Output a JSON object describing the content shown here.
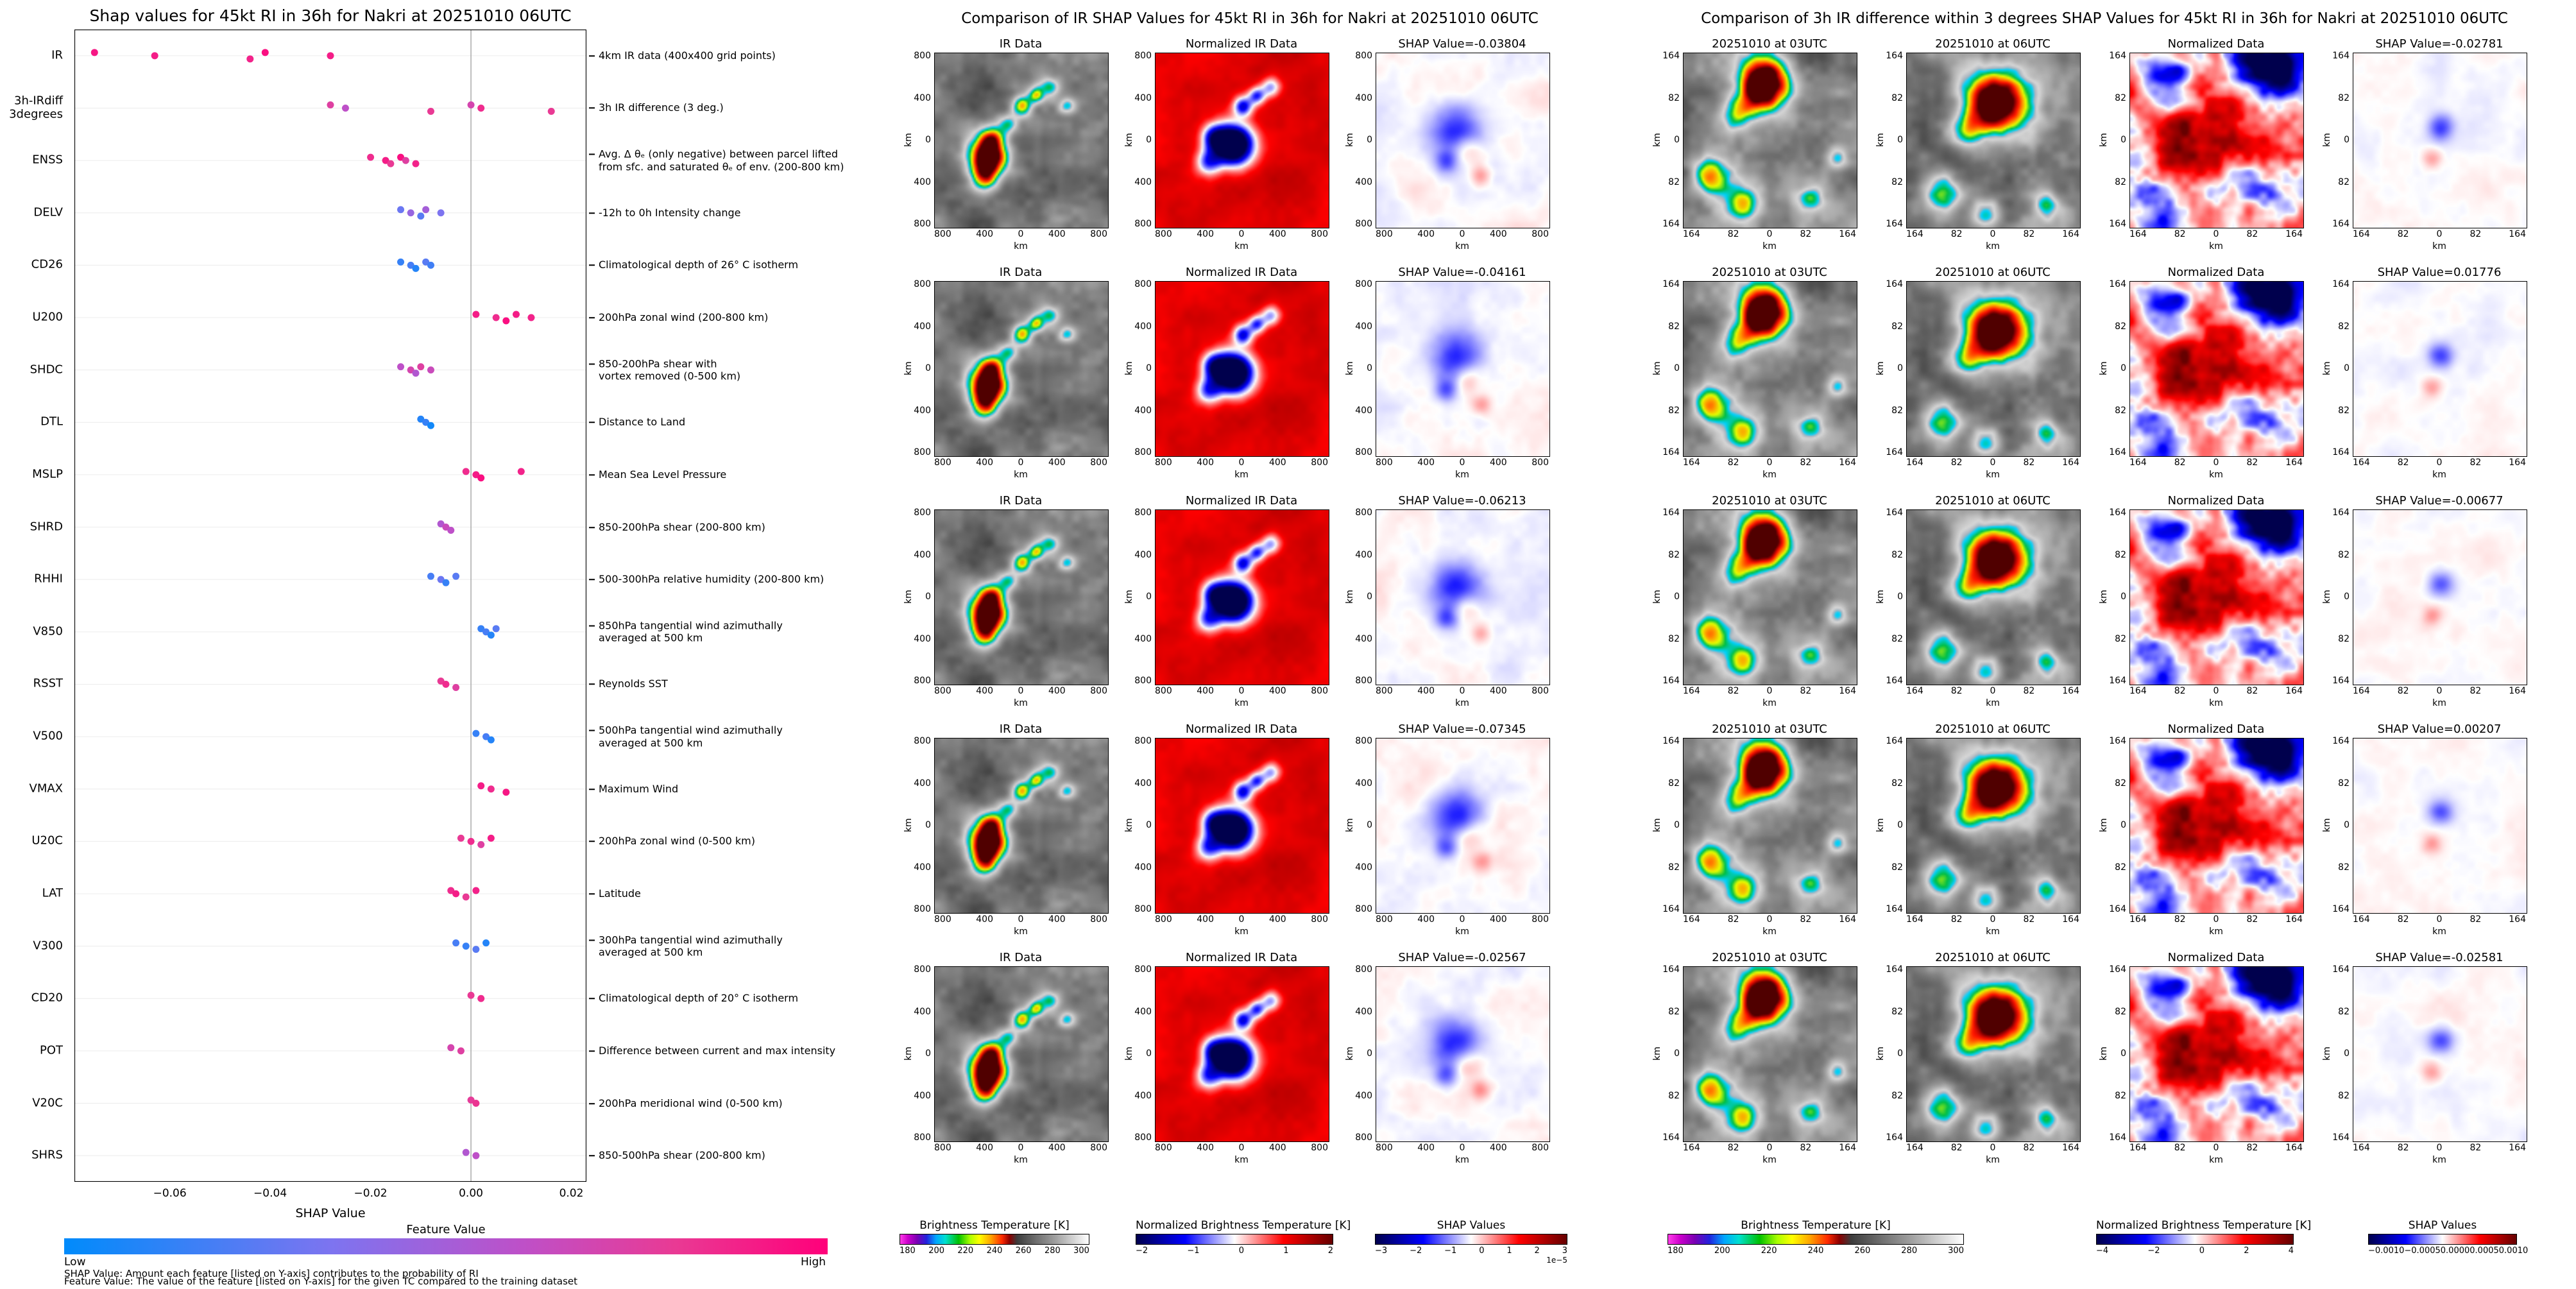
{
  "colors": {
    "feature_value_low": "#008bfb",
    "feature_value_high": "#ff007a",
    "seismic_neg": "#00004d",
    "seismic_pos": "#660000",
    "background": "#ffffff"
  },
  "left_panel": {
    "title": "Shap values for 45kt RI in 36h for Nakri at 20251010 06UTC",
    "xlabel": "SHAP Value",
    "x_ticks": [
      "−0.06",
      "−0.04",
      "−0.02",
      "0.00",
      "0.02"
    ],
    "x_tick_vals": [
      -0.06,
      -0.04,
      -0.02,
      0.0,
      0.02
    ],
    "colorbar": {
      "title": "Feature Value",
      "low": "Low",
      "high": "High"
    },
    "footnote1": "SHAP Value: Amount each feature [listed on Y-axis] contributes to the probability of RI",
    "footnote2": "Feature Value: The value of the feature [listed on Y-axis] for the given TC compared to the training dataset"
  },
  "middle_panel": {
    "title": "Comparison of IR SHAP Values for 45kt RI in 36h for Nakri at 20251010 06UTC",
    "axis_label": "km",
    "y_ticks": [
      "800",
      "400",
      "0",
      "400",
      "800"
    ],
    "x_ticks": [
      "800",
      "400",
      "0",
      "400",
      "800"
    ],
    "rows": [
      {
        "titles": [
          "IR Data",
          "Normalized IR Data",
          "SHAP Value=-0.03804"
        ]
      },
      {
        "titles": [
          "IR Data",
          "Normalized IR Data",
          "SHAP Value=-0.04161"
        ]
      },
      {
        "titles": [
          "IR Data",
          "Normalized IR Data",
          "SHAP Value=-0.06213"
        ]
      },
      {
        "titles": [
          "IR Data",
          "Normalized IR Data",
          "SHAP Value=-0.07345"
        ]
      },
      {
        "titles": [
          "IR Data",
          "Normalized IR Data",
          "SHAP Value=-0.02567"
        ]
      }
    ],
    "colorbars": [
      {
        "label": "Brightness Temperature [K]",
        "type": "ir",
        "ticks": [
          "180",
          "200",
          "220",
          "240",
          "260",
          "280",
          "300"
        ]
      },
      {
        "label": "Normalized Brightness Temperature [K]",
        "type": "seismic",
        "ticks": [
          "−2",
          "−1",
          "0",
          "1",
          "2"
        ]
      },
      {
        "label": "SHAP Values",
        "type": "seismic",
        "ticks": [
          "−3",
          "−2",
          "−1",
          "0",
          "1",
          "2",
          "3"
        ],
        "exp": "1e−5"
      }
    ]
  },
  "right_panel": {
    "title": "Comparison of 3h IR difference within 3 degrees SHAP Values for 45kt RI in 36h for Nakri at 20251010 06UTC",
    "axis_label": "km",
    "y_ticks": [
      "164",
      "82",
      "0",
      "82",
      "164"
    ],
    "x_ticks": [
      "164",
      "82",
      "0",
      "82",
      "164"
    ],
    "rows": [
      {
        "titles": [
          "20251010 at 03UTC",
          "20251010 at 06UTC",
          "Normalized Data",
          "SHAP Value=-0.02781"
        ]
      },
      {
        "titles": [
          "20251010 at 03UTC",
          "20251010 at 06UTC",
          "Normalized Data",
          "SHAP Value=0.01776"
        ]
      },
      {
        "titles": [
          "20251010 at 03UTC",
          "20251010 at 06UTC",
          "Normalized Data",
          "SHAP Value=-0.00677"
        ]
      },
      {
        "titles": [
          "20251010 at 03UTC",
          "20251010 at 06UTC",
          "Normalized Data",
          "SHAP Value=0.00207"
        ]
      },
      {
        "titles": [
          "20251010 at 03UTC",
          "20251010 at 06UTC",
          "Normalized Data",
          "SHAP Value=-0.02581"
        ]
      }
    ],
    "colorbars": [
      {
        "label": "Brightness Temperature [K]",
        "type": "ir",
        "ticks": [
          "180",
          "200",
          "220",
          "240",
          "260",
          "280",
          "300"
        ]
      },
      {
        "label": "Normalized Brightness Temperature [K]",
        "type": "seismic",
        "ticks": [
          "−4",
          "−2",
          "0",
          "2",
          "4"
        ]
      },
      {
        "label": "SHAP Values",
        "type": "seismic",
        "ticks": [
          "−0.0010",
          "−0.0005",
          "0.0000",
          "0.0005",
          "0.0010"
        ]
      }
    ]
  },
  "chart_data": [
    {
      "type": "scatter",
      "subtype": "shap-beeswarm",
      "title": "Shap values for 45kt RI in 36h for Nakri at 20251010 06UTC",
      "xlabel": "SHAP Value",
      "xlim": [
        -0.079,
        0.023
      ],
      "grid": "zero-line",
      "legend_position": "bottom-colorbar",
      "color_scale": {
        "low": "Low",
        "high": "High",
        "low_hex": "#008bfb",
        "high_hex": "#ff007a"
      },
      "features": [
        {
          "name": "IR",
          "desc": "4km IR data (400x400 grid points)",
          "points": [
            [
              -0.075,
              0.92
            ],
            [
              -0.063,
              0.9
            ],
            [
              -0.044,
              0.88
            ],
            [
              -0.041,
              0.95
            ],
            [
              -0.028,
              0.9
            ]
          ]
        },
        {
          "name": "3h-IRdiff\n3degrees",
          "desc": "3h IR difference (3 deg.)",
          "points": [
            [
              -0.028,
              0.75
            ],
            [
              -0.025,
              0.6
            ],
            [
              -0.008,
              0.8
            ],
            [
              0.0,
              0.7
            ],
            [
              0.002,
              0.85
            ],
            [
              0.016,
              0.8
            ]
          ]
        },
        {
          "name": "ENSS",
          "desc": "Avg. Δ θₑ (only negative) between parcel lifted\nfrom sfc. and saturated θₑ of env. (200-800 km)",
          "points": [
            [
              -0.02,
              0.85
            ],
            [
              -0.017,
              0.9
            ],
            [
              -0.016,
              0.8
            ],
            [
              -0.014,
              0.95
            ],
            [
              -0.013,
              0.75
            ],
            [
              -0.011,
              0.88
            ]
          ]
        },
        {
          "name": "DELV",
          "desc": "-12h to 0h Intensity change",
          "points": [
            [
              -0.014,
              0.3
            ],
            [
              -0.012,
              0.45
            ],
            [
              -0.01,
              0.25
            ],
            [
              -0.009,
              0.5
            ],
            [
              -0.006,
              0.35
            ]
          ]
        },
        {
          "name": "CD26",
          "desc": "Climatological depth of 26° C isotherm",
          "points": [
            [
              -0.014,
              0.15
            ],
            [
              -0.012,
              0.2
            ],
            [
              -0.011,
              0.1
            ],
            [
              -0.009,
              0.25
            ],
            [
              -0.008,
              0.18
            ]
          ]
        },
        {
          "name": "U200",
          "desc": "200hPa zonal wind (200-800 km)",
          "points": [
            [
              0.001,
              0.9
            ],
            [
              0.005,
              0.85
            ],
            [
              0.007,
              0.95
            ],
            [
              0.009,
              0.9
            ],
            [
              0.012,
              0.88
            ]
          ]
        },
        {
          "name": "SHDC",
          "desc": "850-200hPa shear with\nvortex removed (0-500 km)",
          "points": [
            [
              -0.014,
              0.6
            ],
            [
              -0.012,
              0.7
            ],
            [
              -0.011,
              0.55
            ],
            [
              -0.01,
              0.75
            ],
            [
              -0.008,
              0.65
            ]
          ]
        },
        {
          "name": "DTL",
          "desc": "Distance to Land",
          "points": [
            [
              -0.01,
              0.1
            ],
            [
              -0.009,
              0.15
            ],
            [
              -0.008,
              0.05
            ]
          ]
        },
        {
          "name": "MSLP",
          "desc": "Mean Sea Level Pressure",
          "points": [
            [
              -0.001,
              0.85
            ],
            [
              0.001,
              0.9
            ],
            [
              0.002,
              0.95
            ],
            [
              0.01,
              0.88
            ]
          ]
        },
        {
          "name": "SHRD",
          "desc": "850-200hPa shear (200-800 km)",
          "points": [
            [
              -0.006,
              0.55
            ],
            [
              -0.005,
              0.65
            ],
            [
              -0.004,
              0.6
            ]
          ]
        },
        {
          "name": "RHHI",
          "desc": "500-300hPa relative humidity (200-800 km)",
          "points": [
            [
              -0.008,
              0.2
            ],
            [
              -0.006,
              0.3
            ],
            [
              -0.005,
              0.15
            ],
            [
              -0.003,
              0.25
            ]
          ]
        },
        {
          "name": "V850",
          "desc": "850hPa tangential wind azimuthally\naveraged at 500 km",
          "points": [
            [
              0.002,
              0.15
            ],
            [
              0.003,
              0.2
            ],
            [
              0.004,
              0.1
            ],
            [
              0.005,
              0.25
            ]
          ]
        },
        {
          "name": "RSST",
          "desc": "Reynolds SST",
          "points": [
            [
              -0.006,
              0.8
            ],
            [
              -0.005,
              0.85
            ],
            [
              -0.003,
              0.75
            ]
          ]
        },
        {
          "name": "V500",
          "desc": "500hPa tangential wind azimuthally\naveraged at 500 km",
          "points": [
            [
              0.001,
              0.15
            ],
            [
              0.003,
              0.2
            ],
            [
              0.004,
              0.1
            ]
          ]
        },
        {
          "name": "VMAX",
          "desc": "Maximum Wind",
          "points": [
            [
              0.002,
              0.9
            ],
            [
              0.004,
              0.85
            ],
            [
              0.007,
              0.92
            ]
          ]
        },
        {
          "name": "U20C",
          "desc": "200hPa zonal wind (0-500 km)",
          "points": [
            [
              -0.002,
              0.8
            ],
            [
              0.0,
              0.85
            ],
            [
              0.002,
              0.75
            ],
            [
              0.004,
              0.9
            ]
          ]
        },
        {
          "name": "LAT",
          "desc": "Latitude",
          "points": [
            [
              -0.004,
              0.85
            ],
            [
              -0.003,
              0.9
            ],
            [
              -0.001,
              0.8
            ],
            [
              0.001,
              0.88
            ]
          ]
        },
        {
          "name": "V300",
          "desc": "300hPa tangential wind azimuthally\naveraged at 500 km",
          "points": [
            [
              -0.003,
              0.2
            ],
            [
              -0.001,
              0.15
            ],
            [
              0.001,
              0.25
            ],
            [
              0.003,
              0.1
            ]
          ]
        },
        {
          "name": "CD20",
          "desc": "Climatological depth of 20° C isotherm",
          "points": [
            [
              0.0,
              0.8
            ],
            [
              0.002,
              0.85
            ]
          ]
        },
        {
          "name": "POT",
          "desc": "Difference between current and max intensity",
          "points": [
            [
              -0.004,
              0.7
            ],
            [
              -0.002,
              0.75
            ]
          ]
        },
        {
          "name": "V20C",
          "desc": "200hPa meridional wind (0-500 km)",
          "points": [
            [
              0.0,
              0.78
            ],
            [
              0.001,
              0.82
            ]
          ]
        },
        {
          "name": "SHRS",
          "desc": "850-500hPa shear (200-800 km)",
          "points": [
            [
              -0.001,
              0.55
            ],
            [
              0.001,
              0.6
            ]
          ]
        }
      ]
    },
    {
      "type": "heatmap",
      "subtype": "image-grid",
      "title": "Comparison of IR SHAP Values for 45kt RI in 36h for Nakri at 20251010 06UTC",
      "columns": [
        "IR Data",
        "Normalized IR Data",
        "SHAP Value"
      ],
      "n_rows": 5,
      "shap_values": [
        -0.03804,
        -0.04161,
        -0.06213,
        -0.07345,
        -0.02567
      ],
      "axis_range_km": [
        -800,
        800
      ],
      "colorbar_ranges": {
        "brightness_temperature_K": [
          180,
          300
        ],
        "normalized_brightness_temperature_K": [
          -2,
          2
        ],
        "shap_values": [
          -3e-05,
          3e-05
        ]
      }
    },
    {
      "type": "heatmap",
      "subtype": "image-grid",
      "title": "Comparison of 3h IR difference within 3 degrees SHAP Values for 45kt RI in 36h for Nakri at 20251010 06UTC",
      "columns": [
        "20251010 at 03UTC",
        "20251010 at 06UTC",
        "Normalized Data",
        "SHAP Value"
      ],
      "n_rows": 5,
      "shap_values": [
        -0.02781,
        0.01776,
        -0.00677,
        0.00207,
        -0.02581
      ],
      "axis_range_km": [
        -164,
        164
      ],
      "colorbar_ranges": {
        "brightness_temperature_K": [
          180,
          300
        ],
        "normalized_brightness_temperature_K": [
          -4,
          4
        ],
        "shap_values": [
          -0.001,
          0.001
        ]
      }
    }
  ]
}
